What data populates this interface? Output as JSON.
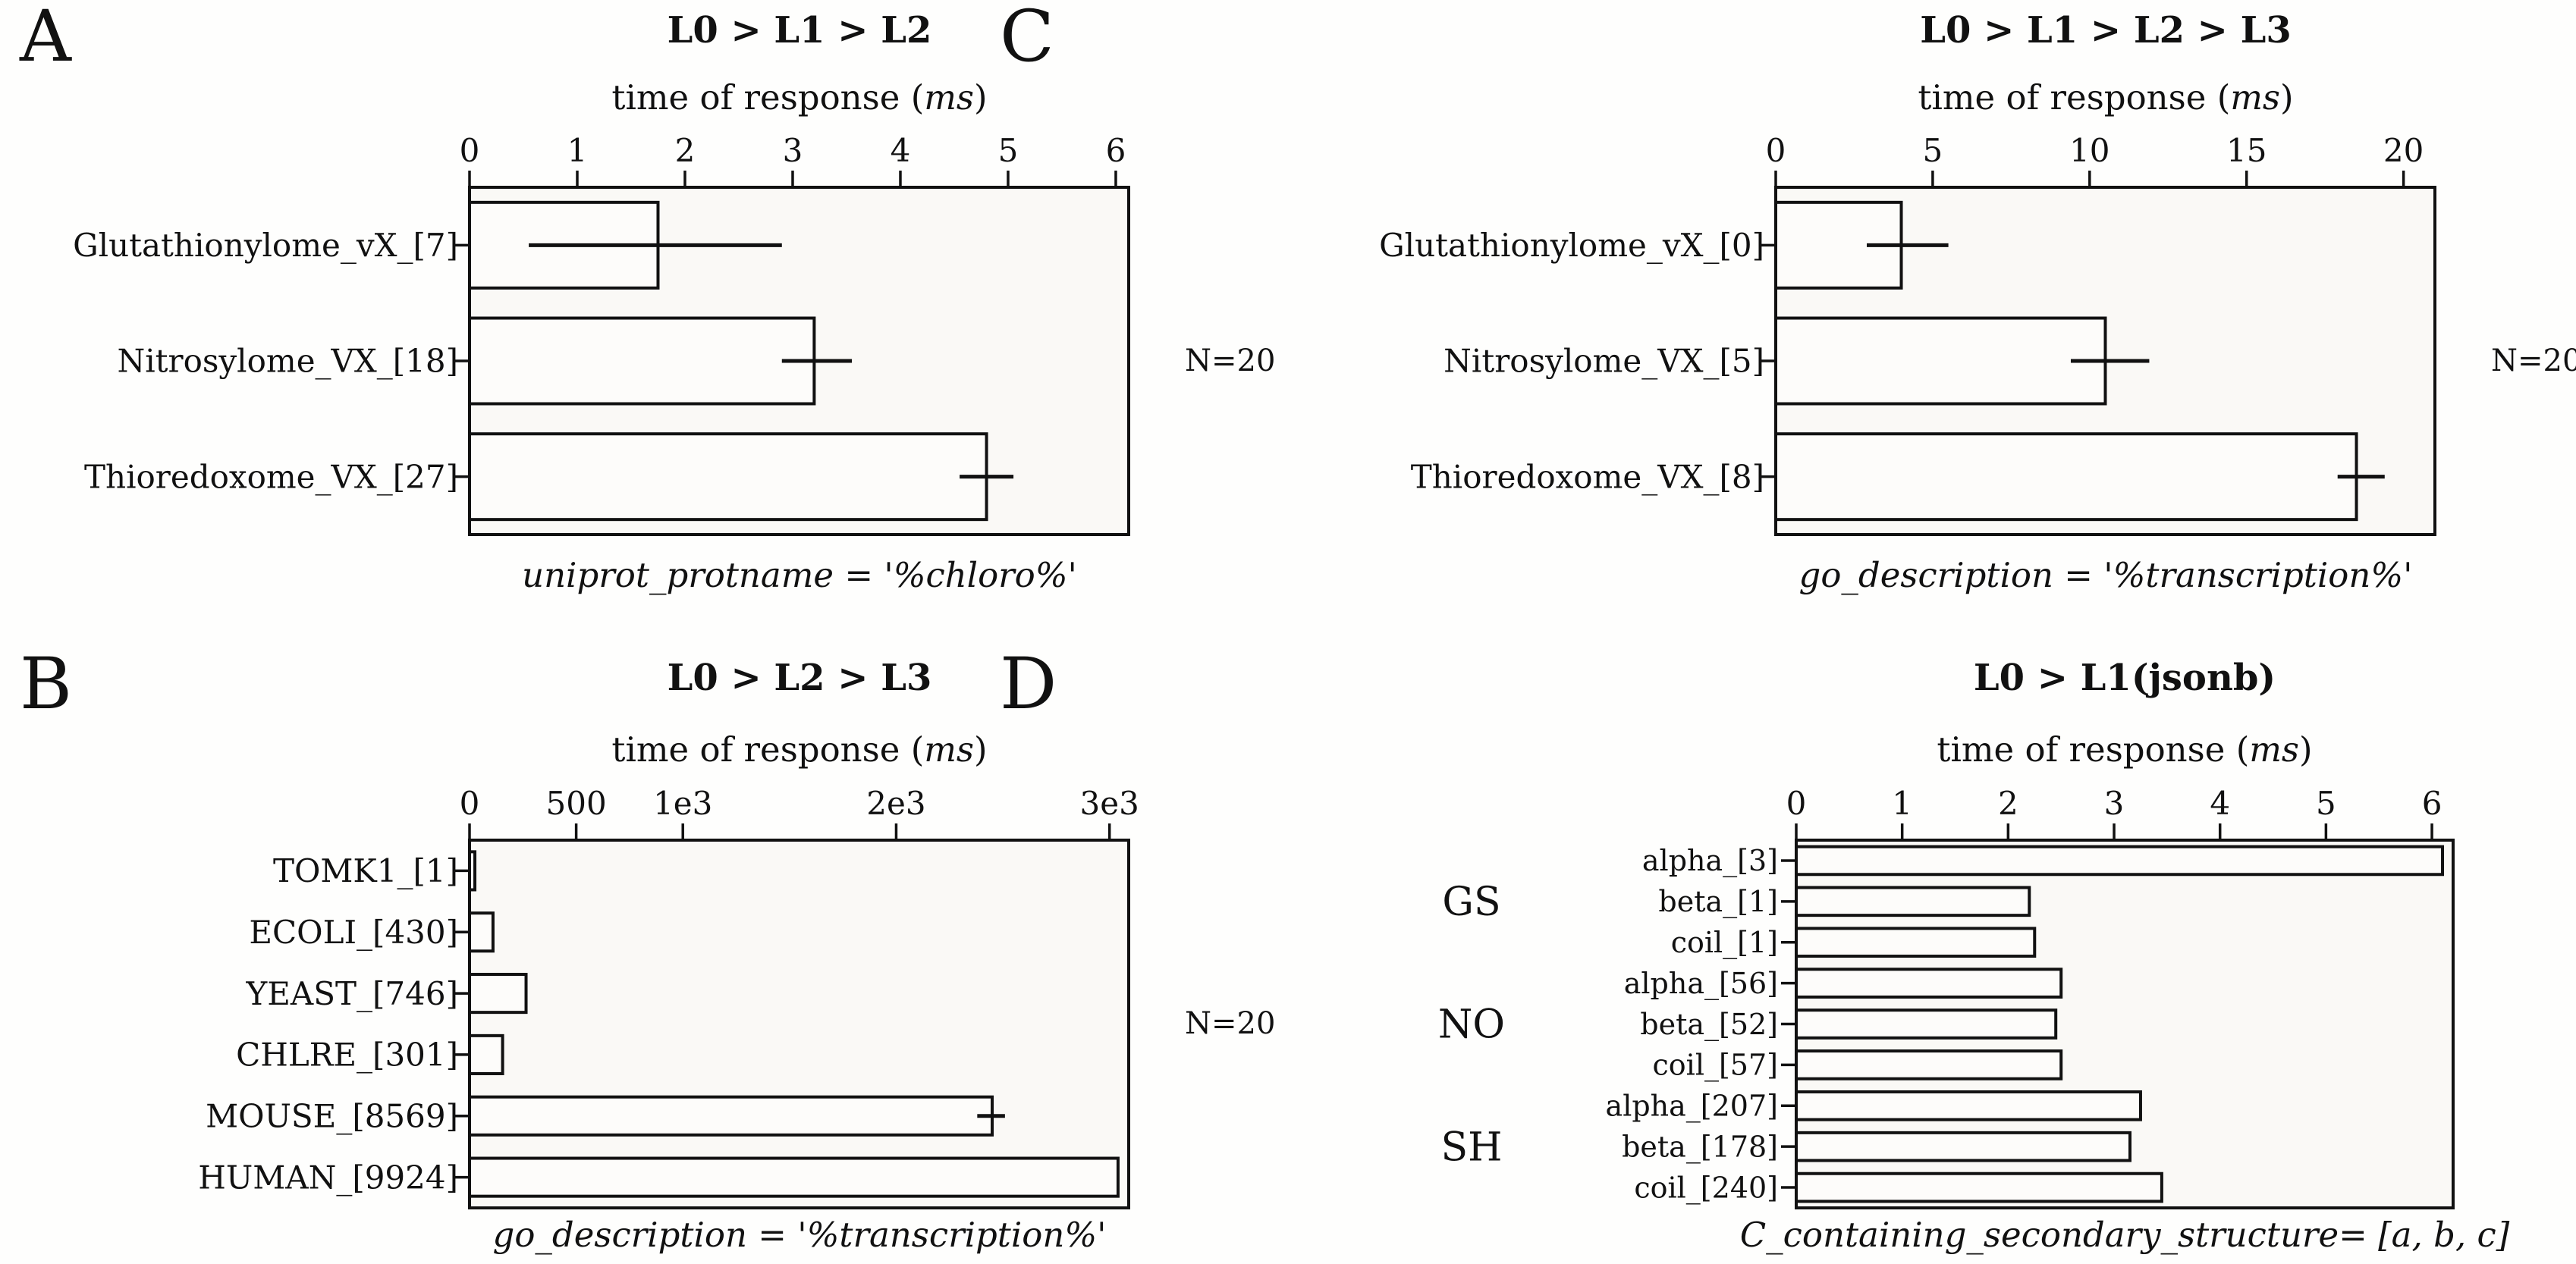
{
  "figure": {
    "page_background": "#fefefd",
    "plot_background": "#faf9f6",
    "bar_fill": "#fdfcfa",
    "ink": "#111111"
  },
  "xlabel_parts": {
    "prefix": "time of response (",
    "unit": "ms",
    "suffix": ")"
  },
  "chart_data": [
    {
      "type": "bar",
      "orientation": "horizontal",
      "panel_label": "A",
      "title": "L0 > L1 > L2",
      "xlabel": "time of response (ms)",
      "caption": "uniprot_protname = '%chloro%'",
      "annotation": "N=20",
      "xlim": [
        0,
        6.12
      ],
      "xticks": [
        0,
        1,
        2,
        3,
        4,
        5,
        6
      ],
      "xtick_labels": [
        "0",
        "1",
        "2",
        "3",
        "4",
        "5",
        "6"
      ],
      "categories": [
        "Glutathionylome_vX_[7]",
        "Nitrosylome_VX_[18]",
        "Thioredoxome_VX_[27]"
      ],
      "values": [
        1.75,
        3.2,
        4.8
      ],
      "errors": [
        [
          0.55,
          2.9
        ],
        [
          2.9,
          3.55
        ],
        [
          4.55,
          5.05
        ]
      ]
    },
    {
      "type": "bar",
      "orientation": "horizontal",
      "panel_label": "B",
      "title": "L0 > L2 > L3",
      "xlabel": "time of response (ms)",
      "caption": "go_description = '%transcription%'",
      "annotation": "N=20",
      "xlim": [
        0,
        3090
      ],
      "xticks": [
        0,
        500,
        1000,
        2000,
        3000
      ],
      "xtick_labels": [
        "0",
        "500",
        "1e3",
        "2e3",
        "3e3"
      ],
      "categories": [
        "TOMK1_[1]",
        "ECOLI_[430]",
        "YEAST_[746]",
        "CHLRE_[301]",
        "MOUSE_[8569]",
        "HUMAN_[9924]"
      ],
      "values": [
        25,
        110,
        265,
        155,
        2450,
        3040
      ],
      "errors": [
        null,
        null,
        null,
        null,
        [
          2380,
          2510
        ],
        null
      ]
    },
    {
      "type": "bar",
      "orientation": "horizontal",
      "panel_label": "C",
      "title": "L0 > L1 > L2 > L3",
      "xlabel": "time of response (ms)",
      "caption": "go_description = '%transcription%'",
      "annotation": "N=20",
      "xlim": [
        0,
        21
      ],
      "xticks": [
        0,
        5,
        10,
        15,
        20
      ],
      "xtick_labels": [
        "0",
        "5",
        "10",
        "15",
        "20"
      ],
      "categories": [
        "Glutathionylome_vX_[0]",
        "Nitrosylome_VX_[5]",
        "Thioredoxome_VX_[8]"
      ],
      "values": [
        4.0,
        10.5,
        18.5
      ],
      "errors": [
        [
          2.9,
          5.5
        ],
        [
          9.4,
          11.9
        ],
        [
          17.9,
          19.4
        ]
      ]
    },
    {
      "type": "bar",
      "orientation": "horizontal",
      "panel_label": "D",
      "title": "L0 > L1(jsonb)",
      "xlabel": "time of response (ms)",
      "caption": "C_containing_secondary_structure= [a, b, c]",
      "xlim": [
        0,
        6.2
      ],
      "xticks": [
        0,
        1,
        2,
        3,
        4,
        5,
        6
      ],
      "xtick_labels": [
        "0",
        "1",
        "2",
        "3",
        "4",
        "5",
        "6"
      ],
      "categories": [
        "alpha_[3]",
        "beta_[1]",
        "coil_[1]",
        "alpha_[56]",
        "beta_[52]",
        "coil_[57]",
        "alpha_[207]",
        "beta_[178]",
        "coil_[240]"
      ],
      "values": [
        6.1,
        2.2,
        2.25,
        2.5,
        2.45,
        2.5,
        3.25,
        3.15,
        3.45
      ],
      "errors": [
        null,
        null,
        null,
        null,
        null,
        null,
        null,
        null,
        null
      ],
      "group_labels": [
        "GS",
        "NO",
        "SH"
      ],
      "groups": [
        [
          0,
          2
        ],
        [
          3,
          5
        ],
        [
          6,
          8
        ]
      ]
    }
  ]
}
